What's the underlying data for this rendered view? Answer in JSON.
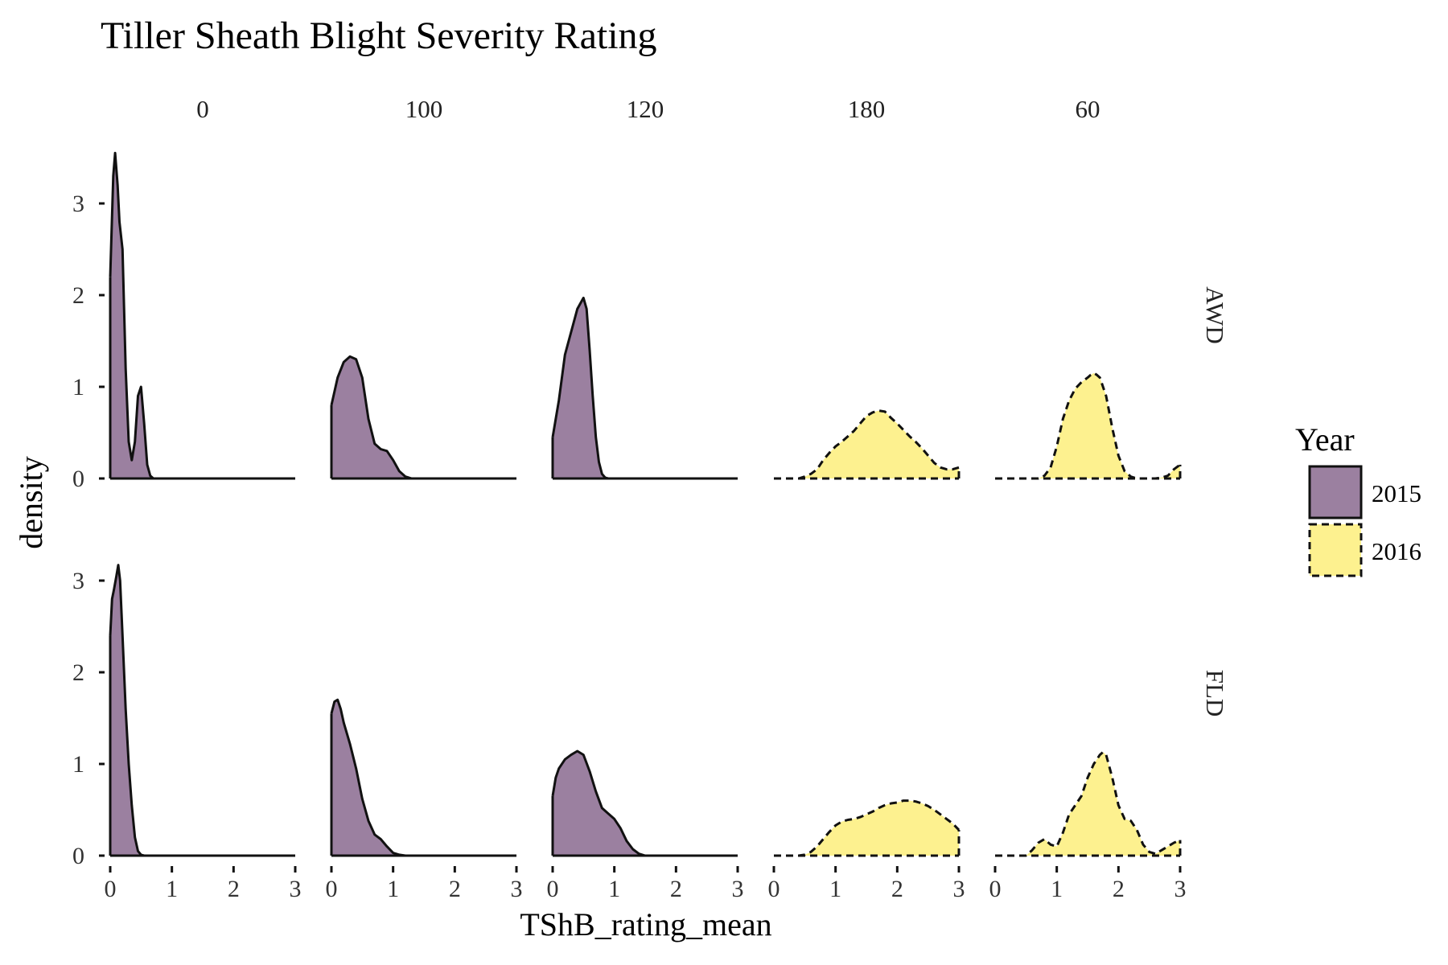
{
  "chart_data": {
    "type": "area",
    "title": "Tiller Sheath Blight Severity Rating",
    "xlabel": "TShB_rating_mean",
    "ylabel": "density",
    "xlim": [
      0,
      3
    ],
    "ylim": [
      0,
      3.6
    ],
    "x_ticks": [
      "0",
      "1",
      "2",
      "3"
    ],
    "y_ticks": [
      "0",
      "1",
      "2",
      "3"
    ],
    "grid": false,
    "columns": [
      "0",
      "100",
      "120",
      "180",
      "60"
    ],
    "rows": [
      "AWD",
      "FLD"
    ],
    "legend": {
      "title": "Year",
      "position": "right",
      "entries": [
        {
          "label": "2015",
          "color": "#9b80a0",
          "line": "solid"
        },
        {
          "label": "2016",
          "color": "#fdf18f",
          "line": "dashed"
        }
      ]
    },
    "panels": [
      {
        "row": "AWD",
        "column": "0",
        "year": "2015",
        "x": [
          0,
          0.05,
          0.08,
          0.12,
          0.15,
          0.2,
          0.25,
          0.3,
          0.35,
          0.4,
          0.45,
          0.5,
          0.55,
          0.6,
          0.65,
          0.7,
          1,
          2,
          3
        ],
        "y": [
          2.2,
          3.3,
          3.55,
          3.2,
          2.8,
          2.5,
          1.2,
          0.4,
          0.2,
          0.4,
          0.9,
          1.0,
          0.6,
          0.15,
          0.03,
          0,
          0,
          0,
          0
        ]
      },
      {
        "row": "AWD",
        "column": "100",
        "year": "2015",
        "x": [
          0,
          0.1,
          0.2,
          0.3,
          0.4,
          0.5,
          0.6,
          0.7,
          0.8,
          0.9,
          1.0,
          1.1,
          1.2,
          1.3,
          1.4,
          2,
          3
        ],
        "y": [
          0.8,
          1.1,
          1.27,
          1.33,
          1.3,
          1.1,
          0.65,
          0.38,
          0.32,
          0.3,
          0.2,
          0.08,
          0.02,
          0,
          0,
          0,
          0
        ]
      },
      {
        "row": "AWD",
        "column": "120",
        "year": "2015",
        "x": [
          0,
          0.1,
          0.2,
          0.3,
          0.4,
          0.5,
          0.55,
          0.6,
          0.65,
          0.7,
          0.75,
          0.8,
          0.85,
          0.9,
          1.0,
          2,
          3
        ],
        "y": [
          0.45,
          0.85,
          1.35,
          1.6,
          1.85,
          1.97,
          1.85,
          1.4,
          0.9,
          0.45,
          0.18,
          0.05,
          0.01,
          0,
          0,
          0,
          0
        ]
      },
      {
        "row": "AWD",
        "column": "180",
        "year": "2016",
        "x": [
          0,
          0.4,
          0.5,
          0.6,
          0.7,
          0.8,
          0.9,
          1.0,
          1.1,
          1.2,
          1.3,
          1.4,
          1.5,
          1.6,
          1.7,
          1.8,
          1.9,
          2.0,
          2.1,
          2.2,
          2.3,
          2.4,
          2.5,
          2.6,
          2.7,
          2.8,
          2.9,
          3.0
        ],
        "y": [
          0,
          0,
          0.02,
          0.05,
          0.1,
          0.2,
          0.28,
          0.35,
          0.4,
          0.46,
          0.52,
          0.6,
          0.68,
          0.72,
          0.74,
          0.73,
          0.66,
          0.6,
          0.53,
          0.46,
          0.4,
          0.33,
          0.25,
          0.17,
          0.12,
          0.1,
          0.1,
          0.12
        ]
      },
      {
        "row": "AWD",
        "column": "60",
        "year": "2016",
        "x": [
          0,
          0.7,
          0.8,
          0.9,
          1.0,
          1.1,
          1.2,
          1.3,
          1.4,
          1.5,
          1.55,
          1.6,
          1.65,
          1.7,
          1.8,
          1.9,
          2.0,
          2.1,
          2.2,
          2.3,
          2.6,
          2.7,
          2.8,
          2.9,
          3.0
        ],
        "y": [
          0,
          0,
          0.03,
          0.12,
          0.35,
          0.65,
          0.85,
          0.98,
          1.05,
          1.1,
          1.13,
          1.15,
          1.13,
          1.1,
          0.9,
          0.55,
          0.25,
          0.08,
          0.02,
          0,
          0,
          0.01,
          0.03,
          0.1,
          0.15
        ]
      },
      {
        "row": "FLD",
        "column": "0",
        "year": "2015",
        "x": [
          0,
          0.03,
          0.06,
          0.1,
          0.13,
          0.16,
          0.2,
          0.25,
          0.3,
          0.35,
          0.4,
          0.45,
          0.5,
          0.55,
          1,
          2,
          3
        ],
        "y": [
          2.4,
          2.8,
          2.9,
          3.05,
          3.17,
          3.0,
          2.4,
          1.6,
          1.0,
          0.55,
          0.2,
          0.05,
          0.01,
          0,
          0,
          0,
          0
        ]
      },
      {
        "row": "FLD",
        "column": "100",
        "year": "2015",
        "x": [
          0,
          0.05,
          0.1,
          0.15,
          0.2,
          0.3,
          0.4,
          0.5,
          0.6,
          0.7,
          0.8,
          0.9,
          1.0,
          1.1,
          1.2,
          2,
          3
        ],
        "y": [
          1.55,
          1.68,
          1.7,
          1.6,
          1.45,
          1.22,
          0.95,
          0.62,
          0.38,
          0.23,
          0.18,
          0.1,
          0.03,
          0.01,
          0,
          0,
          0
        ]
      },
      {
        "row": "FLD",
        "column": "120",
        "year": "2015",
        "x": [
          0,
          0.05,
          0.1,
          0.2,
          0.3,
          0.4,
          0.5,
          0.6,
          0.7,
          0.8,
          0.9,
          1.0,
          1.1,
          1.2,
          1.3,
          1.4,
          1.5,
          2,
          3
        ],
        "y": [
          0.65,
          0.85,
          0.95,
          1.05,
          1.1,
          1.14,
          1.1,
          0.92,
          0.7,
          0.52,
          0.46,
          0.4,
          0.3,
          0.16,
          0.07,
          0.02,
          0,
          0,
          0
        ]
      },
      {
        "row": "FLD",
        "column": "180",
        "year": "2016",
        "x": [
          0,
          0.4,
          0.5,
          0.6,
          0.7,
          0.8,
          0.9,
          1.0,
          1.1,
          1.2,
          1.3,
          1.4,
          1.5,
          1.6,
          1.7,
          1.8,
          1.9,
          2.0,
          2.1,
          2.2,
          2.3,
          2.4,
          2.5,
          2.6,
          2.7,
          2.8,
          2.9,
          3.0
        ],
        "y": [
          0,
          0,
          0.01,
          0.04,
          0.1,
          0.18,
          0.26,
          0.33,
          0.37,
          0.39,
          0.4,
          0.42,
          0.45,
          0.48,
          0.52,
          0.55,
          0.57,
          0.58,
          0.6,
          0.6,
          0.59,
          0.57,
          0.54,
          0.5,
          0.45,
          0.4,
          0.35,
          0.28
        ]
      },
      {
        "row": "FLD",
        "column": "60",
        "year": "2016",
        "x": [
          0,
          0.5,
          0.6,
          0.7,
          0.8,
          0.9,
          1.0,
          1.1,
          1.2,
          1.3,
          1.4,
          1.5,
          1.6,
          1.7,
          1.75,
          1.8,
          1.9,
          2.0,
          2.1,
          2.2,
          2.3,
          2.4,
          2.5,
          2.6,
          2.7,
          2.8,
          2.9,
          3.0
        ],
        "y": [
          0,
          0,
          0.06,
          0.14,
          0.18,
          0.12,
          0.1,
          0.25,
          0.45,
          0.55,
          0.65,
          0.85,
          1.0,
          1.1,
          1.13,
          1.1,
          0.85,
          0.55,
          0.4,
          0.38,
          0.28,
          0.12,
          0.04,
          0.02,
          0.06,
          0.1,
          0.14,
          0.17
        ]
      }
    ]
  }
}
